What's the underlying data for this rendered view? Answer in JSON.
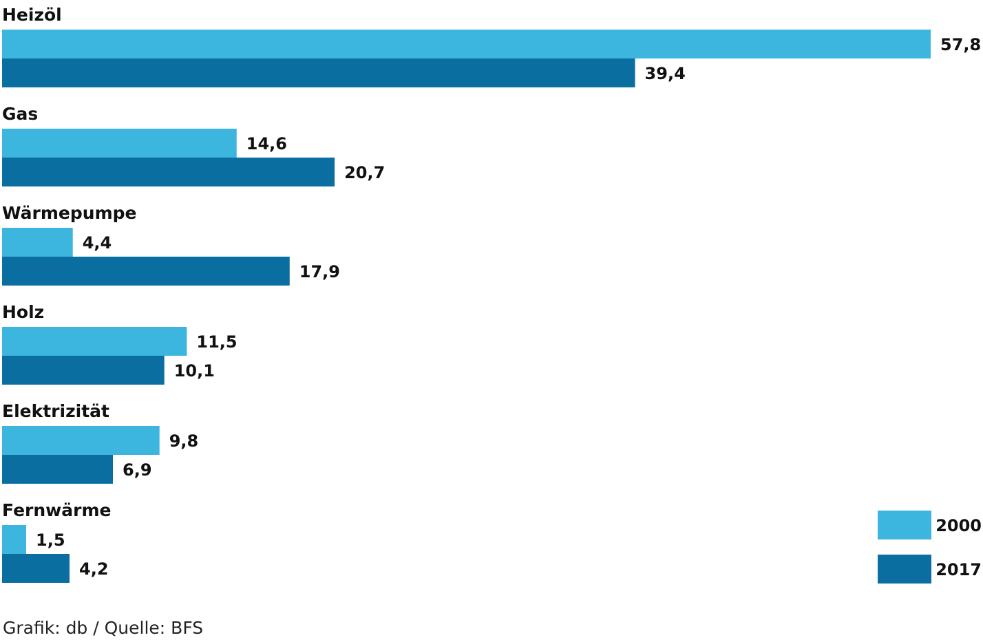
{
  "chart_data": {
    "type": "bar",
    "orientation": "horizontal",
    "categories": [
      "Heizöl",
      "Gas",
      "Wärmepumpe",
      "Holz",
      "Elektrizität",
      "Fernwärme"
    ],
    "series": [
      {
        "name": "2000",
        "color": "#3cb6df",
        "values": [
          57.8,
          14.6,
          4.4,
          11.5,
          9.8,
          1.5
        ],
        "labels": [
          "57,8",
          "14,6",
          "4,4",
          "11,5",
          "9,8",
          "1,5"
        ]
      },
      {
        "name": "2017",
        "color": "#0a6ea0",
        "values": [
          39.4,
          20.7,
          17.9,
          10.1,
          6.9,
          4.2
        ],
        "labels": [
          "39,4",
          "20,7",
          "17,9",
          "10,1",
          "6,9",
          "4,2"
        ]
      }
    ],
    "xlim": [
      0,
      57.8
    ],
    "grid": false,
    "legend_position": "bottom-right",
    "note": "Grafik: db / Quelle: BFS"
  }
}
